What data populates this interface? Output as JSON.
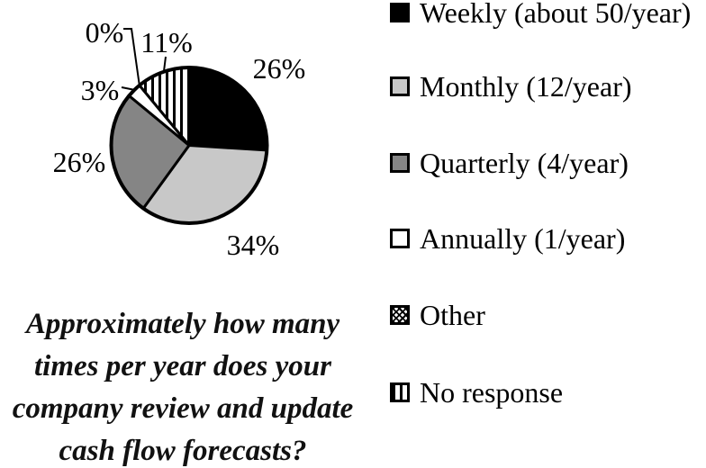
{
  "chart_data": {
    "type": "pie",
    "title": "",
    "question": "Approximately how many times per year does your company review and update cash flow forecasts?",
    "unit": "%",
    "start_angle": "12-oclock",
    "direction": "clockwise",
    "legend_position": "right",
    "slices": [
      {
        "label": "Weekly (about 50/year)",
        "value": 26,
        "fill": "black"
      },
      {
        "label": "Monthly (12/year)",
        "value": 34,
        "fill": "light-gray"
      },
      {
        "label": "Quarterly (4/year)",
        "value": 26,
        "fill": "dark-gray"
      },
      {
        "label": "Annually (1/year)",
        "value": 3,
        "fill": "white"
      },
      {
        "label": "Other",
        "value": 0,
        "fill": "diagonal-checker"
      },
      {
        "label": "No response",
        "value": 11,
        "fill": "vertical-stripes"
      }
    ],
    "data_labels": [
      "26%",
      "34%",
      "26%",
      "3%",
      "0%",
      "11%"
    ],
    "colors": {
      "black": "#000000",
      "light_gray": "#c8c8c8",
      "dark_gray": "#858585",
      "white": "#ffffff",
      "outline": "#000000"
    }
  },
  "caption": {
    "lines": [
      "Approximately how many",
      "times per year does your",
      "company review and update",
      "cash flow forecasts?"
    ]
  }
}
